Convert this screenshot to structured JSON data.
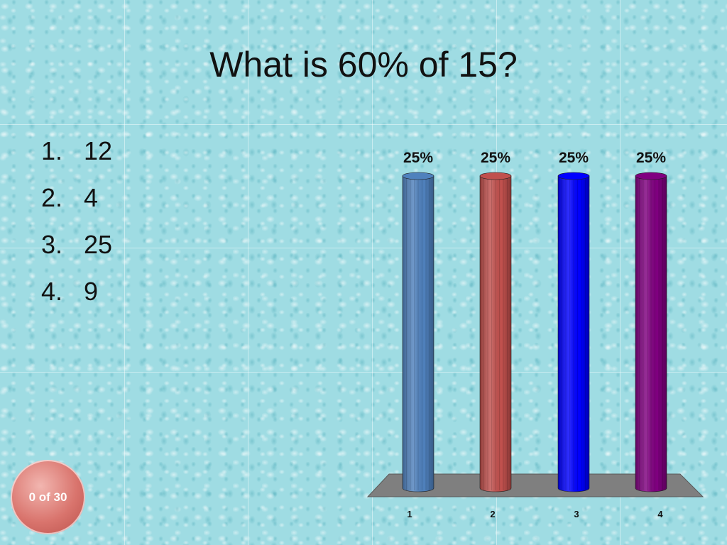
{
  "slide": {
    "title": "What is 60% of 15?",
    "options": [
      {
        "number": "1.",
        "text": "12"
      },
      {
        "number": "2.",
        "text": "4"
      },
      {
        "number": "3.",
        "text": "25"
      },
      {
        "number": "4.",
        "text": "9"
      }
    ],
    "response_counter": "0 of 30"
  },
  "chart_data": {
    "type": "bar",
    "categories": [
      "1",
      "2",
      "3",
      "4"
    ],
    "values": [
      25,
      25,
      25,
      25
    ],
    "value_labels": [
      "25%",
      "25%",
      "25%",
      "25%"
    ],
    "colors": [
      "#4f81bd",
      "#c0504d",
      "#0000ff",
      "#800080"
    ],
    "ylim": [
      0,
      25
    ],
    "title": "",
    "xlabel": "",
    "ylabel": ""
  }
}
